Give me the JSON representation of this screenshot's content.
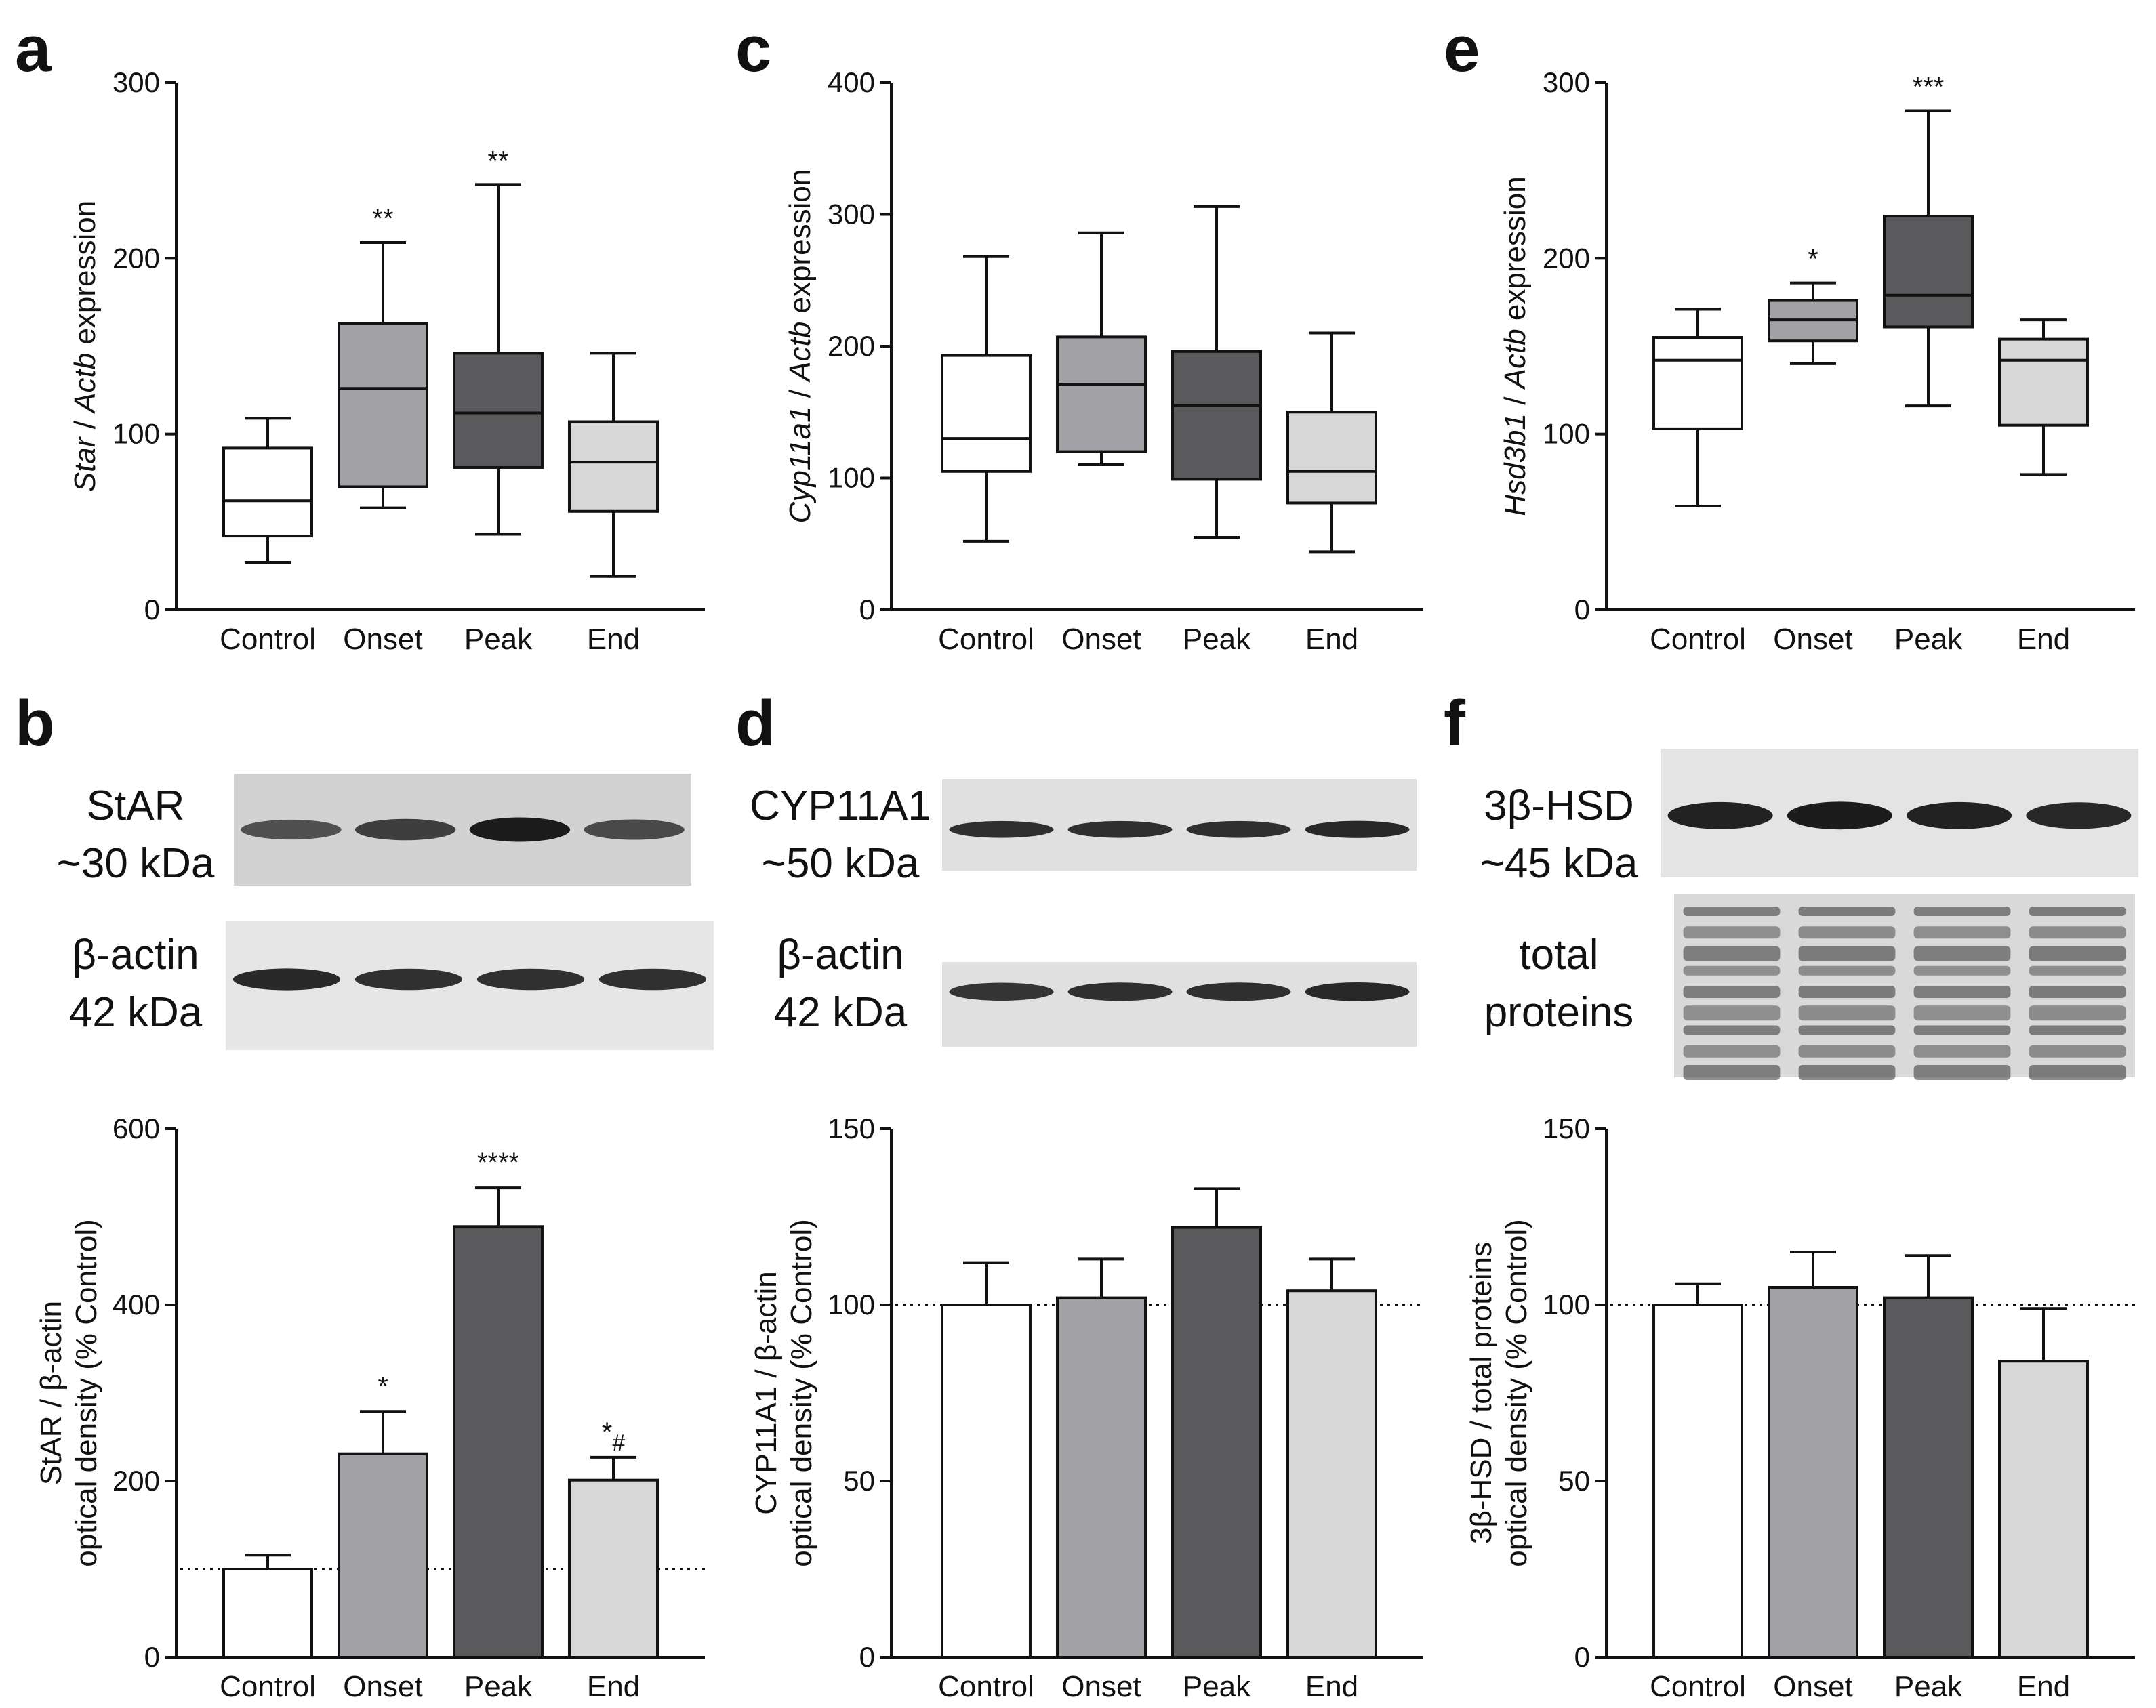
{
  "categories": [
    "Control",
    "Onset",
    "Peak",
    "End"
  ],
  "colors": {
    "Control": "#ffffff",
    "Onset": "#a2a1a6",
    "Peak": "#5a5a5c",
    "End": "#d7d7d7"
  },
  "panels": {
    "a": {
      "letter": "a"
    },
    "b": {
      "letter": "b",
      "blot_top_label": [
        "StAR",
        "~30 kDa"
      ],
      "blot_bottom_label": [
        "β-actin",
        "42 kDa"
      ]
    },
    "c": {
      "letter": "c"
    },
    "d": {
      "letter": "d",
      "blot_top_label": [
        "CYP11A1",
        "~50 kDa"
      ],
      "blot_bottom_label": [
        "β-actin",
        "42 kDa"
      ]
    },
    "e": {
      "letter": "e"
    },
    "f": {
      "letter": "f",
      "blot_top_label": [
        "3β-HSD",
        "~45 kDa"
      ],
      "blot_bottom_label": [
        "total",
        "proteins"
      ]
    }
  },
  "blots": [
    {
      "id": "star",
      "bands": [
        0.55,
        0.7,
        1.0,
        0.6
      ]
    },
    {
      "id": "bactin-b",
      "bands": [
        0.9,
        0.85,
        0.85,
        0.85
      ]
    },
    {
      "id": "cyp",
      "bands": [
        0.85,
        0.85,
        0.85,
        0.9
      ]
    },
    {
      "id": "bactin-d",
      "bands": [
        0.8,
        0.85,
        0.85,
        0.9
      ]
    },
    {
      "id": "hsd",
      "bands": [
        0.95,
        1.0,
        0.95,
        0.9
      ]
    },
    {
      "id": "total",
      "bands": [
        0.8,
        0.85,
        0.8,
        0.85
      ]
    }
  ],
  "chart_data": [
    {
      "panel": "a",
      "type": "box",
      "ylabel": [
        "Star",
        " / ",
        "Actb",
        " expression"
      ],
      "ylim": [
        0,
        300
      ],
      "yticks": [
        0,
        100,
        200,
        300
      ],
      "categories": [
        "Control",
        "Onset",
        "Peak",
        "End"
      ],
      "boxes": [
        {
          "min": 27,
          "q1": 42,
          "median": 62,
          "q3": 92,
          "max": 109,
          "sig": ""
        },
        {
          "min": 58,
          "q1": 70,
          "median": 126,
          "q3": 163,
          "max": 209,
          "sig": "**"
        },
        {
          "min": 43,
          "q1": 81,
          "median": 112,
          "q3": 146,
          "max": 242,
          "sig": "**"
        },
        {
          "min": 19,
          "q1": 56,
          "median": 84,
          "q3": 107,
          "max": 146,
          "sig": ""
        }
      ]
    },
    {
      "panel": "c",
      "type": "box",
      "ylabel": [
        "Cyp11a1",
        " / ",
        "Actb",
        " expression"
      ],
      "ylim": [
        0,
        400
      ],
      "yticks": [
        0,
        100,
        200,
        300,
        400
      ],
      "categories": [
        "Control",
        "Onset",
        "Peak",
        "End"
      ],
      "boxes": [
        {
          "min": 52,
          "q1": 105,
          "median": 130,
          "q3": 193,
          "max": 268,
          "sig": ""
        },
        {
          "min": 110,
          "q1": 120,
          "median": 171,
          "q3": 207,
          "max": 286,
          "sig": ""
        },
        {
          "min": 55,
          "q1": 99,
          "median": 155,
          "q3": 196,
          "max": 306,
          "sig": ""
        },
        {
          "min": 44,
          "q1": 81,
          "median": 105,
          "q3": 150,
          "max": 210,
          "sig": ""
        }
      ]
    },
    {
      "panel": "e",
      "type": "box",
      "ylabel": [
        "Hsd3b1",
        " / ",
        "Actb",
        " expression"
      ],
      "ylim": [
        0,
        300
      ],
      "yticks": [
        0,
        100,
        200,
        300
      ],
      "categories": [
        "Control",
        "Onset",
        "Peak",
        "End"
      ],
      "boxes": [
        {
          "min": 59,
          "q1": 103,
          "median": 142,
          "q3": 155,
          "max": 171,
          "sig": ""
        },
        {
          "min": 140,
          "q1": 153,
          "median": 165,
          "q3": 176,
          "max": 186,
          "sig": "*"
        },
        {
          "min": 116,
          "q1": 161,
          "median": 179,
          "q3": 224,
          "max": 284,
          "sig": "***"
        },
        {
          "min": 77,
          "q1": 105,
          "median": 142,
          "q3": 154,
          "max": 165,
          "sig": ""
        }
      ]
    },
    {
      "panel": "b",
      "type": "bar",
      "ylabel": [
        "StAR / β-actin",
        "optical density (% Control)"
      ],
      "ylim": [
        0,
        600
      ],
      "yticks": [
        0,
        200,
        400,
        600
      ],
      "reference_line": 100,
      "categories": [
        "Control",
        "Onset",
        "Peak",
        "End"
      ],
      "values": [
        100,
        231,
        489,
        201
      ],
      "errors": [
        16,
        48,
        44,
        26
      ],
      "sig": [
        "",
        "*",
        "****",
        "*#"
      ]
    },
    {
      "panel": "d",
      "type": "bar",
      "ylabel": [
        "CYP11A1 / β-actin",
        "optical density (% Control)"
      ],
      "ylim": [
        0,
        150
      ],
      "yticks": [
        0,
        50,
        100,
        150
      ],
      "reference_line": 100,
      "categories": [
        "Control",
        "Onset",
        "Peak",
        "End"
      ],
      "values": [
        100,
        102,
        122,
        104
      ],
      "errors": [
        12,
        11,
        11,
        9
      ],
      "sig": [
        "",
        "",
        "",
        ""
      ]
    },
    {
      "panel": "f",
      "type": "bar",
      "ylabel": [
        "3β-HSD / total proteins",
        "optical density (% Control)"
      ],
      "ylim": [
        0,
        150
      ],
      "yticks": [
        0,
        50,
        100,
        150
      ],
      "reference_line": 100,
      "categories": [
        "Control",
        "Onset",
        "Peak",
        "End"
      ],
      "values": [
        100,
        105,
        102,
        84
      ],
      "errors": [
        6,
        10,
        12,
        15
      ],
      "sig": [
        "",
        "",
        "",
        ""
      ]
    }
  ]
}
